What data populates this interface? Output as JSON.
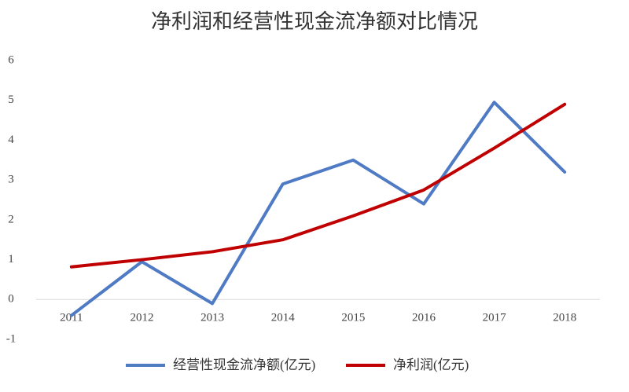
{
  "chart_data": {
    "type": "line",
    "title": "净利润和经营性现金流净额对比情况",
    "categories": [
      "2011",
      "2012",
      "2013",
      "2014",
      "2015",
      "2016",
      "2017",
      "2018"
    ],
    "series": [
      {
        "name": "经营性现金流净额(亿元)",
        "color": "#4f7ac4",
        "values": [
          -0.4,
          0.95,
          -0.1,
          2.9,
          3.5,
          2.4,
          4.95,
          3.2
        ]
      },
      {
        "name": "净利润(亿元)",
        "color": "#c00000",
        "values": [
          0.82,
          1.0,
          1.2,
          1.5,
          2.1,
          2.75,
          3.8,
          4.9
        ]
      }
    ],
    "ylim": [
      -1,
      6
    ],
    "yticks": [
      -1,
      0,
      1,
      2,
      3,
      4,
      5,
      6
    ],
    "grid": false
  }
}
